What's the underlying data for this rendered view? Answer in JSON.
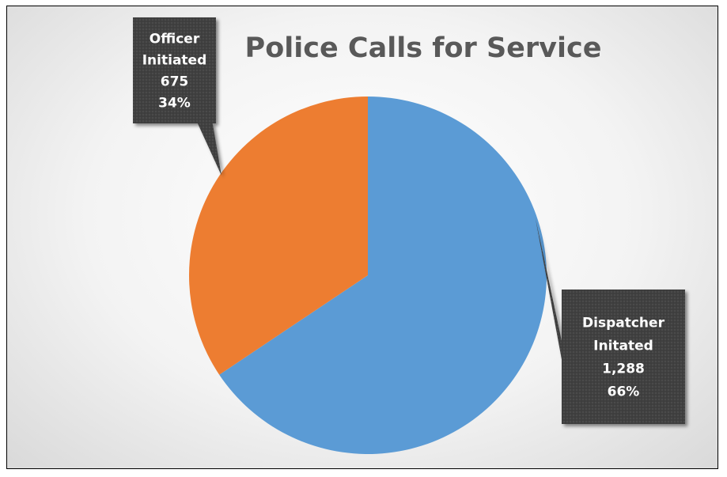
{
  "chart_data": {
    "type": "pie",
    "title": "Police Calls for Service",
    "slices": [
      {
        "label_lines": [
          "Dispatcher",
          "Initated"
        ],
        "value": 1288,
        "value_text": "1,288",
        "percent_text": "66%",
        "color": "#5B9BD5"
      },
      {
        "label_lines": [
          "Officer",
          "Initiated"
        ],
        "value": 675,
        "value_text": "675",
        "percent_text": "34%",
        "color": "#ED7D31"
      }
    ],
    "legend": "none",
    "data_labels": "callouts"
  }
}
